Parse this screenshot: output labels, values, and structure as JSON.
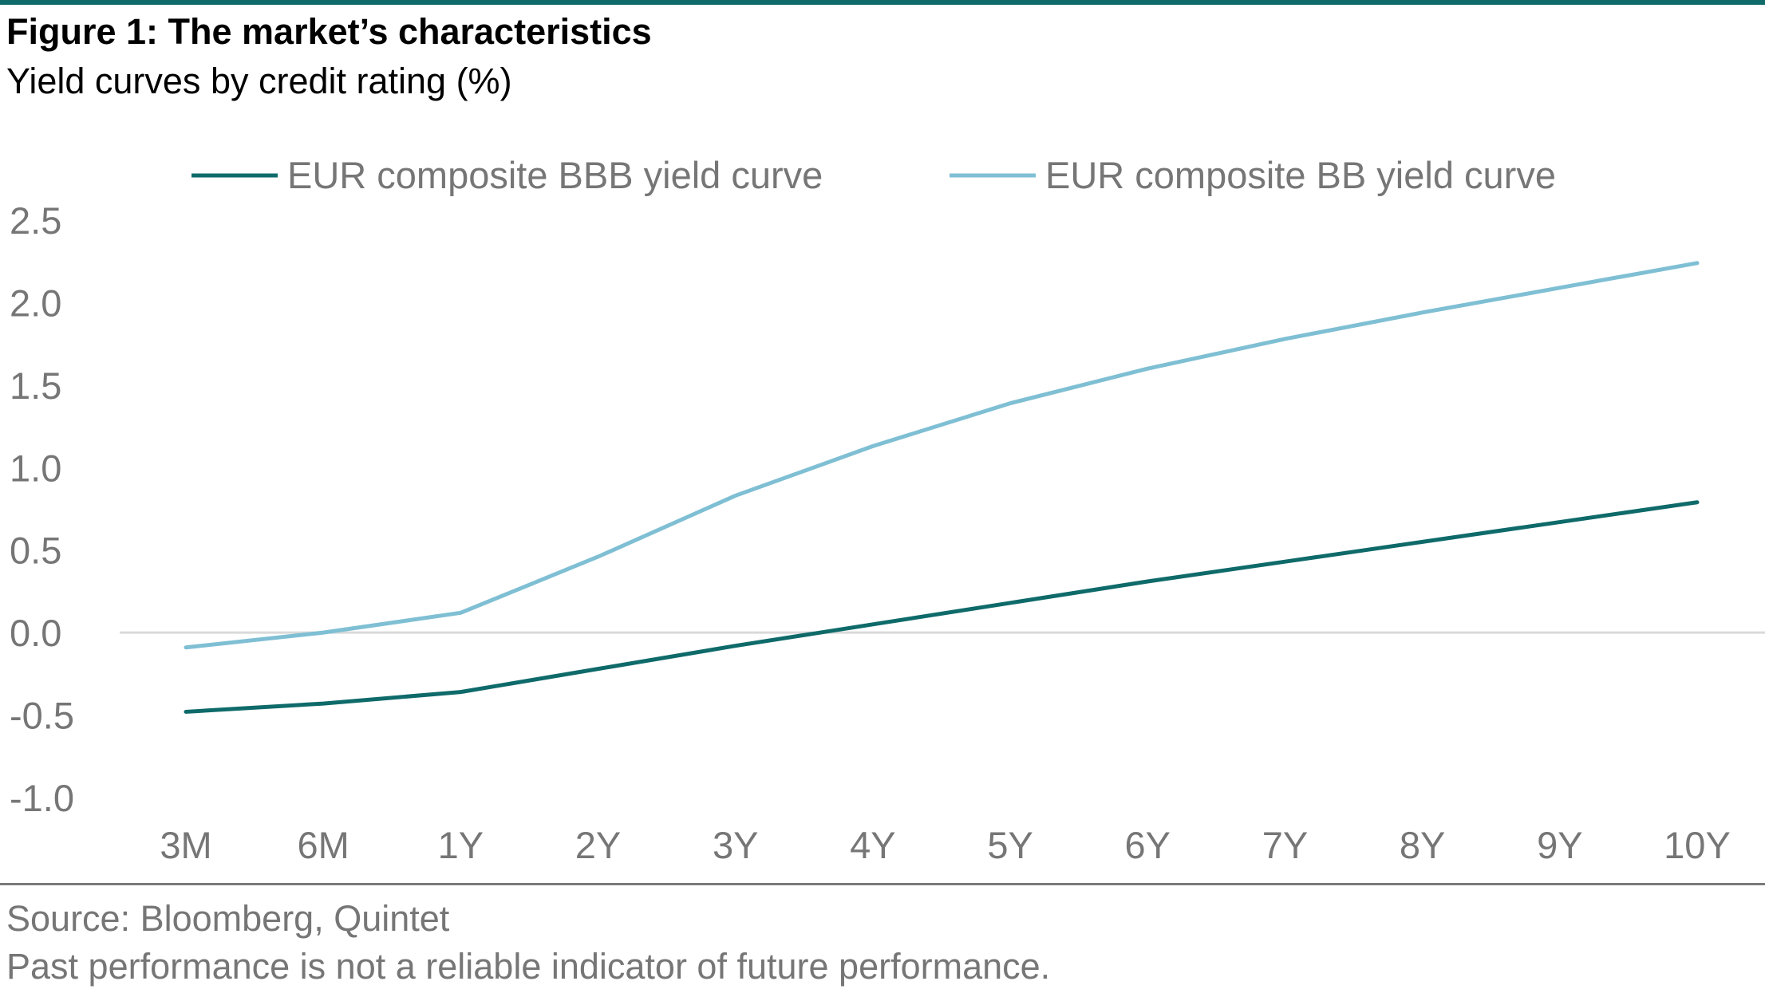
{
  "header": {
    "title": "Figure 1: The market’s characteristics",
    "subtitle": "Yield curves by credit rating (%)"
  },
  "footer": {
    "source": "Source: Bloomberg, Quintet",
    "disclaimer": "Past performance is not a reliable indicator of future performance."
  },
  "colors": {
    "accent_rule": "#0f6a6a",
    "bbb_series": "#0f6a6a",
    "bb_series": "#7fbfd4",
    "zero_line": "#d9d9d9",
    "label_text": "#767676"
  },
  "chart_data": {
    "type": "line",
    "title": "Figure 1: The market’s characteristics",
    "subtitle": "Yield curves by credit rating (%)",
    "xlabel": "",
    "ylabel": "",
    "categories": [
      "3M",
      "6M",
      "1Y",
      "2Y",
      "3Y",
      "4Y",
      "5Y",
      "6Y",
      "7Y",
      "8Y",
      "9Y",
      "10Y"
    ],
    "y_ticks": [
      "2.5",
      "2.0",
      "1.5",
      "1.0",
      "0.5",
      "0.0",
      "-0.5",
      "-1.0"
    ],
    "ylim": [
      -1.0,
      2.5
    ],
    "grid": false,
    "zero_line": true,
    "legend_position": "top",
    "series": [
      {
        "name": "EUR composite BBB yield curve",
        "color": "#0f6a6a",
        "values": [
          -0.48,
          -0.43,
          -0.36,
          -0.22,
          -0.08,
          0.05,
          0.18,
          0.31,
          0.43,
          0.55,
          0.67,
          0.79
        ]
      },
      {
        "name": "EUR composite BB yield curve",
        "color": "#7fbfd4",
        "values": [
          -0.09,
          0.0,
          0.12,
          0.46,
          0.83,
          1.13,
          1.39,
          1.6,
          1.78,
          1.94,
          2.09,
          2.24
        ]
      }
    ]
  }
}
